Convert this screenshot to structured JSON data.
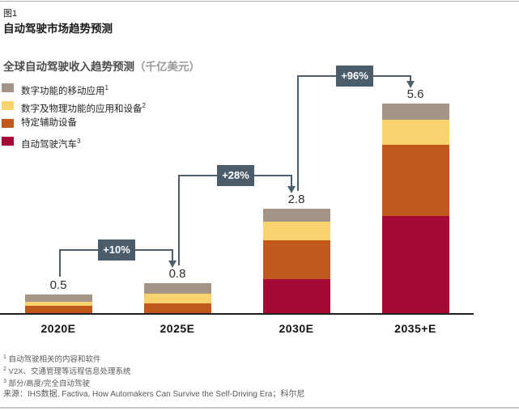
{
  "page": {
    "figure_label": "图1",
    "title": "自动驾驶市场趋势预测"
  },
  "chart": {
    "subtitle_main": "全球自动驾驶收入趋势预测",
    "subtitle_unit": "（千亿美元）"
  },
  "chart_data": {
    "type": "bar",
    "stacked": true,
    "title": "全球自动驾驶收入趋势预测（千亿美元）",
    "unit": "千亿美元",
    "categories": [
      "2020E",
      "2025E",
      "2030E",
      "2035+E"
    ],
    "totals": [
      0.5,
      0.8,
      2.8,
      5.6
    ],
    "series": [
      {
        "name": "自动驾驶汽车",
        "footnote_marker": "3",
        "color": "#a50a36",
        "values": [
          0,
          0,
          0.9,
          2.6
        ]
      },
      {
        "name": "特定辅助设备",
        "footnote_marker": "",
        "color": "#c2591c",
        "values": [
          0.2,
          0.26,
          1.05,
          1.9
        ]
      },
      {
        "name": "数字及物理功能的应用和设备",
        "footnote_marker": "2",
        "color": "#fbd36e",
        "values": [
          0.1,
          0.26,
          0.5,
          0.67
        ]
      },
      {
        "name": "数字功能的移动应用",
        "footnote_marker": "1",
        "color": "#a59588",
        "values": [
          0.2,
          0.28,
          0.35,
          0.43
        ]
      }
    ],
    "growth_labels": [
      {
        "from": "2020E",
        "to": "2025E",
        "label": "+10%"
      },
      {
        "from": "2025E",
        "to": "2030E",
        "label": "+28%"
      },
      {
        "from": "2030E",
        "to": "2035+E",
        "label": "+96%"
      }
    ],
    "ylim": [
      0,
      6
    ],
    "grid": false,
    "legend_position": "upper-left"
  },
  "legend": {
    "items": [
      {
        "label": "数字功能的移动应用",
        "sup": "1",
        "color": "#a59588"
      },
      {
        "label": "数字及物理功能的应用和设备",
        "sup": "2",
        "color": "#fbd36e"
      },
      {
        "label": "特定辅助设备",
        "sup": "",
        "color": "#c2591c"
      },
      {
        "label": "自动驾驶汽车",
        "sup": "3",
        "color": "#a50a36"
      }
    ]
  },
  "footnotes": [
    {
      "marker": "1",
      "text": "自动驾驶相关的内容和软件"
    },
    {
      "marker": "2",
      "text": "V2X、交通管理等远程信息处理系统"
    },
    {
      "marker": "3",
      "text": "部分/高度/完全自动驾驶"
    }
  ],
  "source": "来源：IHS数据, Factiva, How Automakers Can Survive the Self-Driving Era；科尔尼",
  "colors": {
    "accent_box": "#4b5d6b",
    "connector": "#4d5f6d",
    "axis": "#231f20",
    "value_label": "#2e2e2e"
  }
}
